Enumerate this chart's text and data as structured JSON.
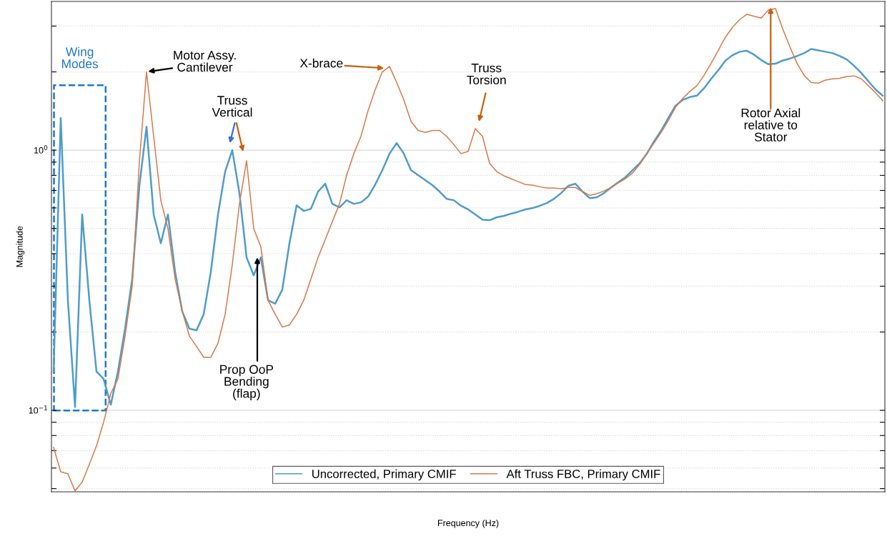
{
  "chart_data": {
    "type": "line",
    "xlabel": "Frequency (Hz)",
    "ylabel": "Magnitude",
    "categories": [
      null,
      null,
      null,
      null,
      null,
      null,
      null,
      null,
      null,
      null,
      null,
      null,
      null,
      null,
      null,
      null,
      null,
      null,
      null,
      null,
      null,
      null,
      null,
      null,
      null,
      null,
      null,
      null,
      null,
      null,
      null,
      null,
      null,
      null,
      null,
      null,
      null,
      null,
      null,
      null,
      null,
      null,
      null,
      null,
      null,
      null,
      null,
      null,
      null,
      null,
      null,
      null,
      null,
      null,
      null,
      null,
      null,
      null,
      null,
      null,
      null,
      null,
      null,
      null,
      null,
      null,
      null,
      null,
      null,
      null,
      null,
      null,
      null,
      null,
      null,
      null,
      null,
      null,
      null,
      null,
      null,
      null,
      null,
      null,
      null,
      null,
      null,
      null,
      null,
      null,
      null,
      null,
      null,
      null,
      null,
      null,
      null,
      null,
      null,
      null,
      null,
      null,
      null,
      null,
      null,
      null,
      null,
      null,
      null,
      null,
      null,
      null,
      null,
      null,
      null,
      null,
      null
    ],
    "series": [
      {
        "name": "Uncorrected, Primary CMIF",
        "color": "#4f9cc9",
        "values": [
          0.141,
          1.33,
          0.265,
          0.103,
          0.566,
          0.265,
          0.141,
          0.132,
          0.105,
          0.141,
          0.206,
          0.32,
          0.729,
          1.23,
          0.566,
          0.439,
          0.566,
          0.341,
          0.24,
          0.206,
          0.203,
          0.234,
          0.341,
          0.566,
          0.827,
          1.0,
          0.684,
          0.387,
          0.33,
          0.387,
          0.265,
          0.257,
          0.291,
          0.439,
          0.614,
          0.584,
          0.595,
          0.693,
          0.743,
          0.622,
          0.603,
          0.642,
          0.622,
          0.63,
          0.663,
          0.738,
          0.838,
          0.97,
          1.065,
          0.97,
          0.838,
          0.802,
          0.767,
          0.734,
          0.693,
          0.65,
          0.642,
          0.611,
          0.592,
          0.566,
          0.541,
          0.538,
          0.552,
          0.559,
          0.57,
          0.58,
          0.592,
          0.599,
          0.611,
          0.626,
          0.65,
          0.684,
          0.729,
          0.743,
          0.693,
          0.654,
          0.659,
          0.684,
          0.719,
          0.753,
          0.787,
          0.838,
          0.89,
          0.97,
          1.08,
          1.19,
          1.33,
          1.48,
          1.56,
          1.6,
          1.62,
          1.73,
          1.88,
          2.03,
          2.21,
          2.32,
          2.39,
          2.41,
          2.33,
          2.22,
          2.14,
          2.15,
          2.21,
          2.25,
          2.3,
          2.36,
          2.45,
          2.42,
          2.39,
          2.36,
          2.3,
          2.23,
          2.11,
          1.98,
          1.84,
          1.71,
          1.62
        ]
      },
      {
        "name": "Aft Truss FBC, Primary CMIF",
        "color": "#d9794a",
        "values": [
          0.072,
          0.058,
          0.057,
          0.049,
          0.053,
          0.062,
          0.073,
          0.09,
          0.116,
          0.132,
          0.193,
          0.301,
          0.9,
          2.0,
          1.13,
          0.642,
          0.499,
          0.32,
          0.24,
          0.193,
          0.176,
          0.16,
          0.16,
          0.181,
          0.234,
          0.363,
          0.622,
          0.91,
          0.499,
          0.425,
          0.265,
          0.234,
          0.209,
          0.213,
          0.234,
          0.265,
          0.32,
          0.387,
          0.453,
          0.531,
          0.622,
          0.802,
          0.97,
          1.13,
          1.42,
          1.71,
          2.0,
          2.1,
          1.82,
          1.56,
          1.29,
          1.19,
          1.17,
          1.19,
          1.19,
          1.13,
          1.05,
          0.97,
          0.99,
          1.21,
          1.13,
          0.89,
          0.827,
          0.797,
          0.777,
          0.757,
          0.738,
          0.734,
          0.724,
          0.715,
          0.715,
          0.711,
          0.719,
          0.719,
          0.693,
          0.671,
          0.68,
          0.697,
          0.719,
          0.748,
          0.777,
          0.817,
          0.881,
          0.97,
          1.065,
          1.17,
          1.3,
          1.46,
          1.58,
          1.68,
          1.77,
          1.94,
          2.16,
          2.42,
          2.72,
          2.97,
          3.18,
          3.33,
          3.27,
          3.22,
          3.46,
          3.5,
          2.93,
          2.5,
          2.16,
          1.94,
          1.82,
          1.81,
          1.86,
          1.88,
          1.89,
          1.92,
          1.93,
          1.88,
          1.77,
          1.66,
          1.55
        ]
      }
    ],
    "log": "y",
    "ylim": [
      0.0486,
      3.73
    ],
    "yticks": [
      {
        "value": 0.05,
        "label": null
      },
      {
        "value": 0.06,
        "label": null
      },
      {
        "value": 0.07,
        "label": null
      },
      {
        "value": 0.08,
        "label": null
      },
      {
        "value": 0.09,
        "label": null
      },
      {
        "value": 0.1,
        "label": "10$^{−1}$"
      },
      {
        "value": 0.2,
        "label": null
      },
      {
        "value": 0.3,
        "label": null
      },
      {
        "value": 0.4,
        "label": null
      },
      {
        "value": 0.5,
        "label": null
      },
      {
        "value": 0.6,
        "label": null
      },
      {
        "value": 0.7,
        "label": null
      },
      {
        "value": 0.8,
        "label": null
      },
      {
        "value": 0.9,
        "label": null
      },
      {
        "value": 1,
        "label": "10$^{0}$"
      },
      {
        "value": 2,
        "label": null
      },
      {
        "value": 3,
        "label": null
      }
    ],
    "tick_labels": "y",
    "grid": "y",
    "legend": "bottom",
    "marker": "none",
    "line_style": "solid",
    "annotations": [
      "Wing Modes",
      "Motor Assy. Cantilever",
      "Truss Vertical",
      "Prop OoP Bending (flap)",
      "X-brace",
      "Truss Torsion",
      "Rotor Axial relative to Stator"
    ]
  }
}
